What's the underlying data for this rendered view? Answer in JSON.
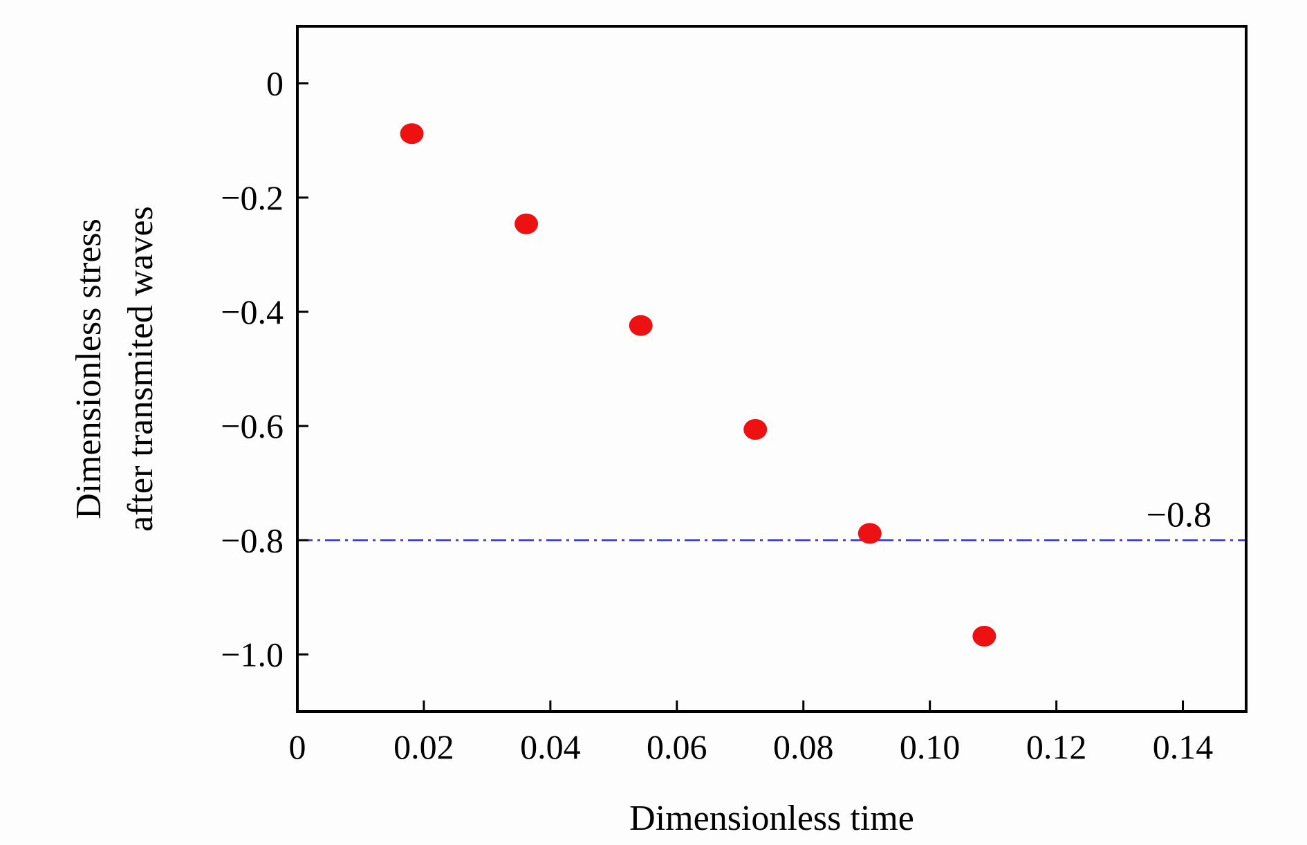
{
  "chart_data": {
    "type": "scatter",
    "title": "",
    "xlabel": "Dimensionless time",
    "ylabel_lines": [
      "Dimensionless stress",
      "after transmited waves"
    ],
    "xlim": [
      0,
      0.15
    ],
    "ylim": [
      -1.1,
      0.1
    ],
    "x_ticks": [
      0,
      0.02,
      0.04,
      0.06,
      0.08,
      0.1,
      0.12,
      0.14
    ],
    "x_tick_labels": [
      "0",
      "0.02",
      "0.04",
      "0.06",
      "0.08",
      "0.10",
      "0.12",
      "0.14"
    ],
    "y_ticks": [
      0,
      -0.2,
      -0.4,
      -0.6,
      -0.8,
      -1.0
    ],
    "y_tick_labels": [
      "0",
      "−0.2",
      "−0.4",
      "−0.6",
      "−0.8",
      "−1.0"
    ],
    "grid": false,
    "series": [
      {
        "x": [
          0.0181,
          0.0362,
          0.0543,
          0.0724,
          0.0905,
          0.1086
        ],
        "y": [
          -0.088,
          -0.246,
          -0.424,
          -0.606,
          -0.788,
          -0.968
        ],
        "color": "#ee1111"
      }
    ],
    "reference_line": {
      "y": -0.8,
      "label": "−0.8",
      "color": "#3333cc",
      "style": "dash-dot"
    }
  }
}
